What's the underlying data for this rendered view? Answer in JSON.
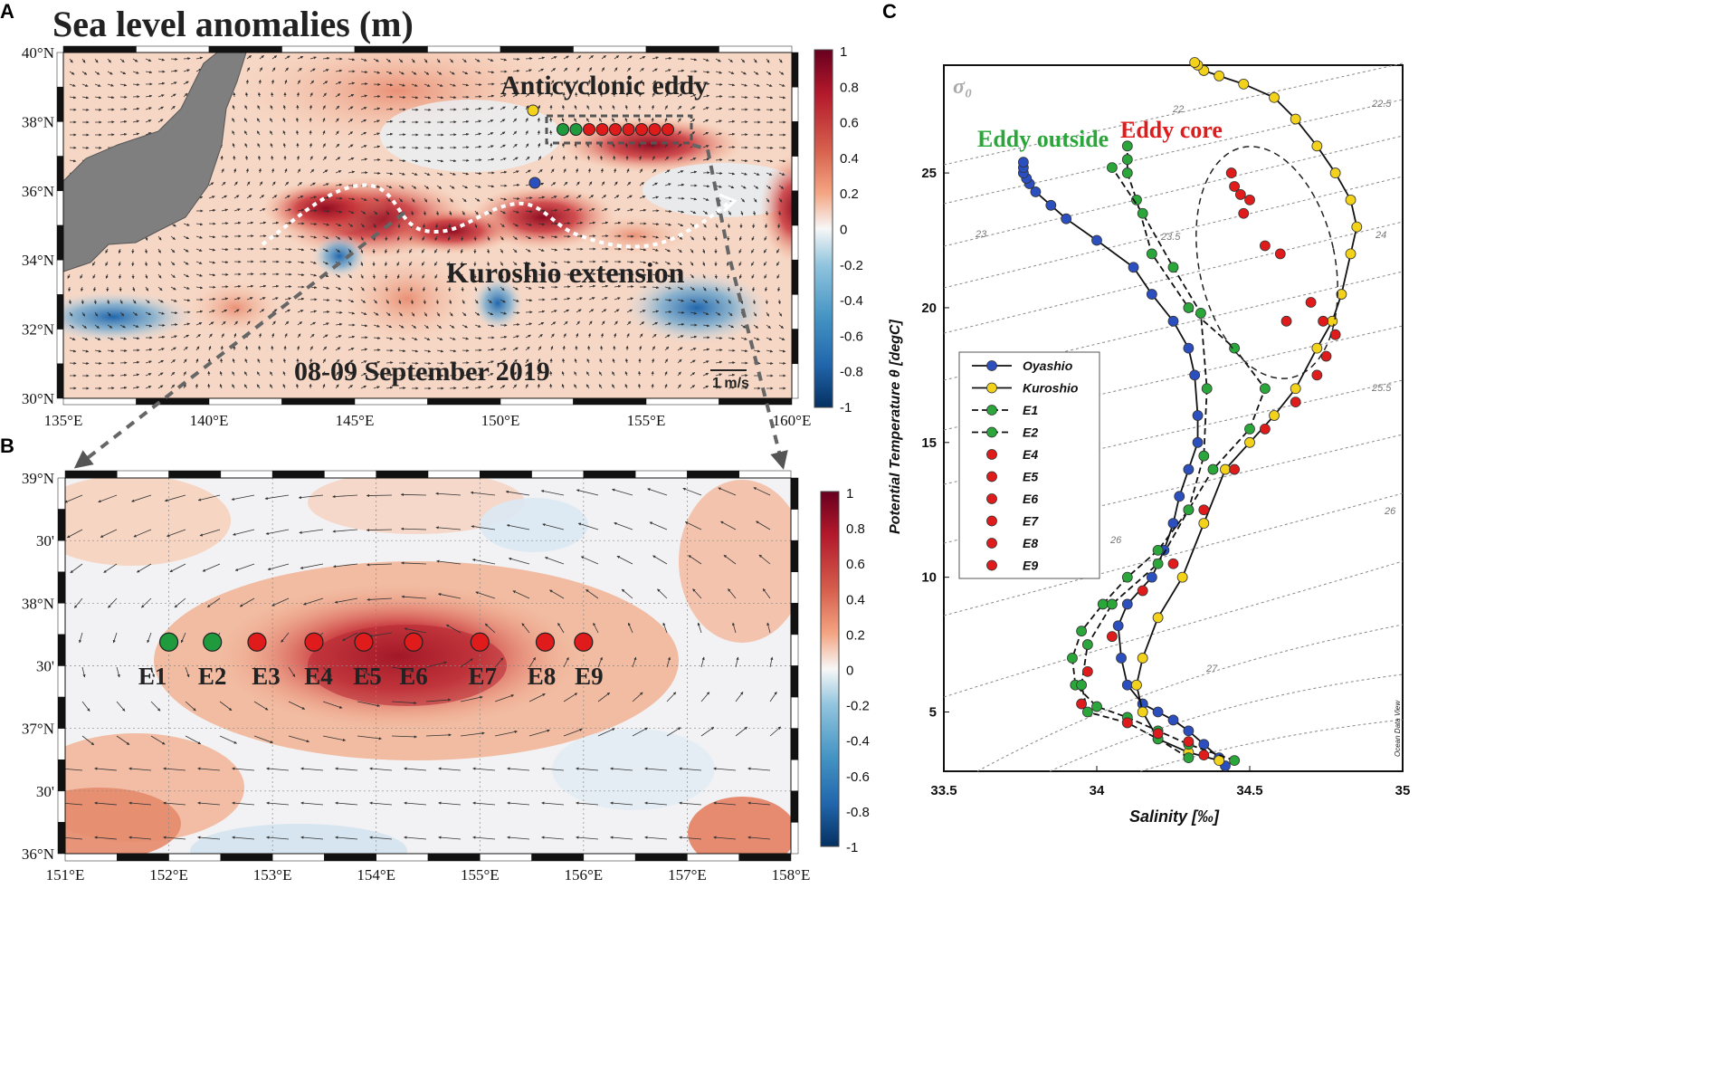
{
  "figure": {
    "panel_labels": [
      "A",
      "B",
      "C"
    ]
  },
  "panelA": {
    "title": "Sea level anomalies (m)",
    "date_label": "08-09 September 2019",
    "eddy_label": "Anticyclonic eddy",
    "kuroshio_label": "Kuroshio extension",
    "scale_label": "1 m/s",
    "lon_ticks": [
      "135°E",
      "140°E",
      "145°E",
      "150°E",
      "155°E",
      "160°E"
    ],
    "lat_ticks": [
      "40°N",
      "38°N",
      "36°N",
      "34°N",
      "32°N",
      "30°N"
    ],
    "colorbar_ticks": [
      "1",
      "0.8",
      "0.6",
      "0.4",
      "0.2",
      "0",
      "-0.2",
      "-0.4",
      "-0.6",
      "-0.8",
      "-1"
    ],
    "colors": {
      "positive": "#b2182b",
      "negative": "#2166ac",
      "land": "#7f7f7f"
    }
  },
  "panelB": {
    "lon_ticks": [
      "151°E",
      "152°E",
      "153°E",
      "154°E",
      "155°E",
      "156°E",
      "157°E",
      "158°E"
    ],
    "lat_ticks": [
      "39°N",
      "30'",
      "38°N",
      "30'",
      "37°N",
      "30'",
      "36°N"
    ],
    "colorbar_ticks": [
      "1",
      "0.8",
      "0.6",
      "0.4",
      "0.2",
      "0",
      "-0.2",
      "-0.4",
      "-0.6",
      "-0.8",
      "-1"
    ],
    "stations": [
      {
        "name": "E1",
        "lon": 152.0,
        "lat": 37.69,
        "type": "outside"
      },
      {
        "name": "E2",
        "lon": 152.42,
        "lat": 37.69,
        "type": "outside"
      },
      {
        "name": "E3",
        "lon": 152.85,
        "lat": 37.69,
        "type": "core"
      },
      {
        "name": "E4",
        "lon": 153.4,
        "lat": 37.69,
        "type": "core"
      },
      {
        "name": "E5",
        "lon": 153.88,
        "lat": 37.69,
        "type": "core"
      },
      {
        "name": "E6",
        "lon": 154.36,
        "lat": 37.69,
        "type": "core"
      },
      {
        "name": "E7",
        "lon": 155.0,
        "lat": 37.69,
        "type": "core"
      },
      {
        "name": "E8",
        "lon": 155.63,
        "lat": 37.69,
        "type": "core"
      },
      {
        "name": "E9",
        "lon": 156.0,
        "lat": 37.69,
        "type": "core"
      }
    ],
    "colors": {
      "outside": "#1f9a3c",
      "core": "#e01b1b"
    }
  },
  "panelC": {
    "sigma_label": "σ₀",
    "eddy_outside_label": "Eddy outside",
    "eddy_core_label": "Eddy core",
    "xlabel": "Salinity [‰]",
    "ylabel": "Potential Temperature θ [degC]",
    "watermark": "Ocean Data View",
    "x_ticks": [
      "33.5",
      "34",
      "34.5",
      "35"
    ],
    "y_ticks": [
      "25",
      "20",
      "15",
      "10",
      "5"
    ],
    "isopycnal_labels": [
      "22",
      "22.5",
      "23",
      "23.5",
      "24",
      "25.5",
      "26",
      "26",
      "27"
    ],
    "legend": [
      {
        "label": "Oyashio",
        "style": "solid",
        "color": "#2b4fbf"
      },
      {
        "label": "Kuroshio",
        "style": "solid",
        "color": "#f2d21b"
      },
      {
        "label": "E1",
        "style": "dashed",
        "color": "#2aa63a"
      },
      {
        "label": "E2",
        "style": "dashed",
        "color": "#2aa63a"
      },
      {
        "label": "E4",
        "style": "marker",
        "color": "#e01b1b"
      },
      {
        "label": "E5",
        "style": "marker",
        "color": "#e01b1b"
      },
      {
        "label": "E6",
        "style": "marker",
        "color": "#e01b1b"
      },
      {
        "label": "E7",
        "style": "marker",
        "color": "#e01b1b"
      },
      {
        "label": "E8",
        "style": "marker",
        "color": "#e01b1b"
      },
      {
        "label": "E9",
        "style": "marker",
        "color": "#e01b1b"
      }
    ]
  },
  "chart_data": {
    "type": "scatter",
    "title": "",
    "xlabel": "Salinity [‰]",
    "ylabel": "Potential Temperature θ [degC]",
    "xlim": [
      33.5,
      35
    ],
    "ylim": [
      2.8,
      29
    ],
    "series": [
      {
        "name": "Oyashio",
        "x": [
          34.42,
          34.4,
          34.35,
          34.3,
          34.25,
          34.2,
          34.15,
          34.1,
          34.08,
          34.07,
          34.1,
          34.18,
          34.22,
          34.25,
          34.27,
          34.3,
          34.33,
          34.33,
          34.32,
          34.3,
          34.25,
          34.18,
          34.12,
          34.0,
          33.9,
          33.85,
          33.8,
          33.78,
          33.77,
          33.76,
          33.76,
          33.76
        ],
        "y": [
          3.0,
          3.3,
          3.8,
          4.3,
          4.7,
          5.0,
          5.3,
          6.0,
          7.0,
          8.2,
          9.0,
          10.0,
          11.0,
          12.0,
          13.0,
          14.0,
          15.0,
          16.0,
          17.5,
          18.5,
          19.5,
          20.5,
          21.5,
          22.5,
          23.3,
          23.8,
          24.3,
          24.6,
          24.8,
          25.0,
          25.2,
          25.4
        ]
      },
      {
        "name": "Kuroshio",
        "x": [
          34.4,
          34.3,
          34.2,
          34.15,
          34.13,
          34.15,
          34.2,
          34.28,
          34.35,
          34.42,
          34.5,
          34.58,
          34.65,
          34.72,
          34.77,
          34.8,
          34.83,
          34.85,
          34.83,
          34.78,
          34.72,
          34.65,
          34.58,
          34.48,
          34.4,
          34.35,
          34.33,
          34.32
        ],
        "y": [
          3.2,
          3.5,
          4.0,
          5.0,
          6.0,
          7.0,
          8.5,
          10.0,
          12.0,
          14.0,
          15.0,
          16.0,
          17.0,
          18.5,
          19.5,
          20.5,
          22.0,
          23.0,
          24.0,
          25.0,
          26.0,
          27.0,
          27.8,
          28.3,
          28.6,
          28.8,
          29.0,
          29.1
        ]
      },
      {
        "name": "E1",
        "x": [
          34.45,
          34.3,
          34.2,
          34.1,
          34.0,
          33.93,
          33.92,
          33.95,
          34.02,
          34.1,
          34.2,
          34.3,
          34.38,
          34.5,
          34.55,
          34.45,
          34.3,
          34.18,
          34.13,
          34.1,
          34.1,
          34.1
        ],
        "y": [
          3.2,
          3.8,
          4.3,
          4.8,
          5.2,
          6.0,
          7.0,
          8.0,
          9.0,
          10.0,
          11.0,
          12.5,
          14.0,
          15.5,
          17.0,
          18.5,
          20.0,
          22.0,
          24.0,
          25.0,
          25.5,
          26.0
        ]
      },
      {
        "name": "E2",
        "x": [
          34.3,
          34.2,
          34.1,
          33.97,
          33.95,
          33.97,
          34.05,
          34.2,
          34.3,
          34.35,
          34.36,
          34.34,
          34.25,
          34.15,
          34.05
        ],
        "y": [
          3.3,
          4.0,
          4.6,
          5.0,
          6.0,
          7.5,
          9.0,
          10.5,
          12.5,
          14.5,
          17.0,
          19.8,
          21.5,
          23.5,
          25.2
        ]
      },
      {
        "name": "Eddy core (E4-E9)",
        "x": [
          34.35,
          34.3,
          34.2,
          34.1,
          33.95,
          33.97,
          34.05,
          34.15,
          34.25,
          34.35,
          34.45,
          34.55,
          34.65,
          34.72,
          34.75,
          34.78,
          34.74,
          34.7,
          34.62,
          34.6,
          34.55,
          34.48,
          34.5,
          34.45,
          34.47,
          34.44
        ],
        "y": [
          3.4,
          3.9,
          4.2,
          4.6,
          5.3,
          6.5,
          7.8,
          9.5,
          10.5,
          12.5,
          14.0,
          15.5,
          16.5,
          17.5,
          18.2,
          19.0,
          19.5,
          20.2,
          19.5,
          22.0,
          22.3,
          23.5,
          24.0,
          24.5,
          24.2,
          25.0
        ]
      }
    ]
  }
}
